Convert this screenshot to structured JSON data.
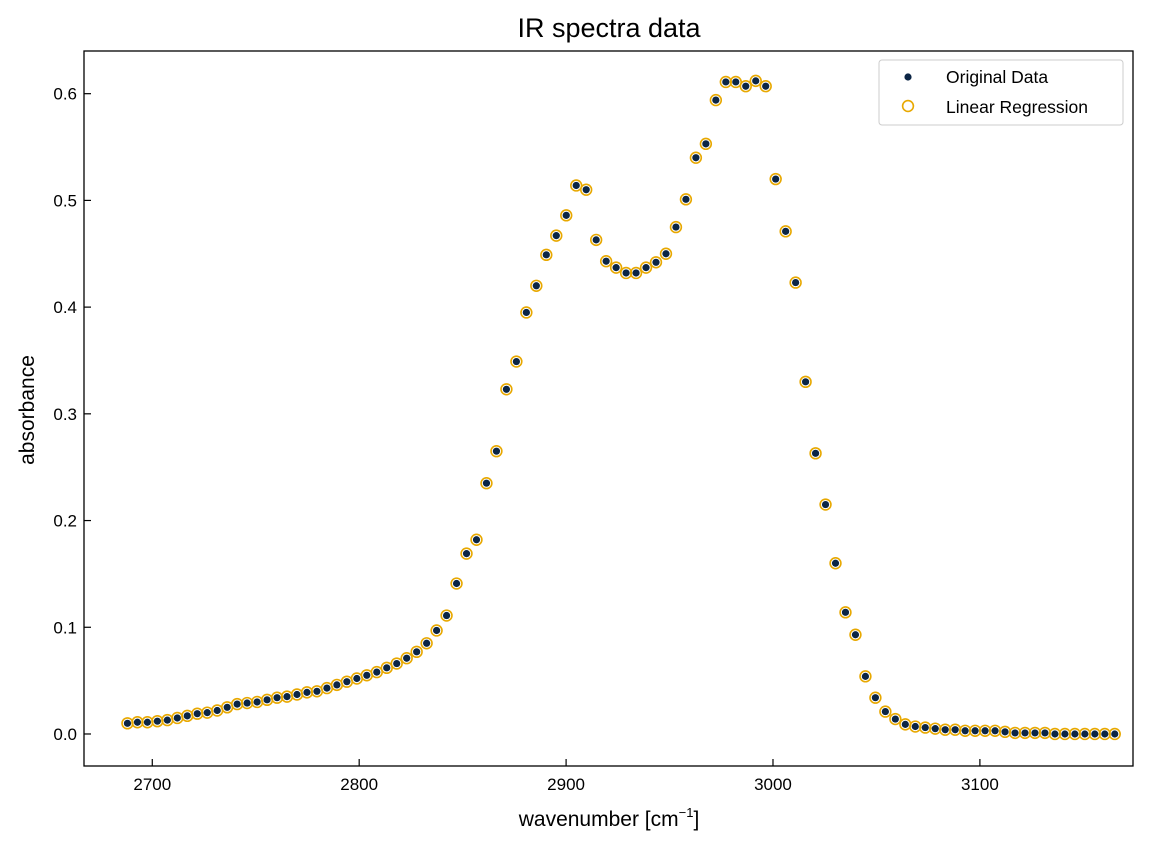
{
  "chart_data": {
    "type": "scatter",
    "title": "IR spectra data",
    "xlabel": "wavenumber [cm",
    "xlabel_sup": "−1",
    "xlabel_end": "]",
    "ylabel": "absorbance",
    "xlim": [
      2667,
      3174
    ],
    "ylim": [
      -0.03,
      0.64
    ],
    "xticks": [
      2700,
      2800,
      2900,
      3000,
      3100
    ],
    "yticks": [
      0.0,
      0.1,
      0.2,
      0.3,
      0.4,
      0.5,
      0.6
    ],
    "legend_position": "upper right",
    "colors": {
      "original": "#0b2545",
      "regression": "#e8a800"
    },
    "x_start": 2688,
    "x_step": 4.82,
    "series": [
      {
        "name": "Original Data",
        "marker": "filled-dot",
        "values": [
          0.01,
          0.011,
          0.011,
          0.012,
          0.013,
          0.015,
          0.017,
          0.019,
          0.02,
          0.022,
          0.025,
          0.028,
          0.029,
          0.03,
          0.032,
          0.034,
          0.035,
          0.037,
          0.039,
          0.04,
          0.043,
          0.046,
          0.049,
          0.052,
          0.055,
          0.058,
          0.062,
          0.066,
          0.071,
          0.077,
          0.085,
          0.097,
          0.111,
          0.141,
          0.169,
          0.182,
          0.235,
          0.265,
          0.323,
          0.349,
          0.395,
          0.42,
          0.449,
          0.467,
          0.486,
          0.514,
          0.51,
          0.463,
          0.443,
          0.437,
          0.432,
          0.432,
          0.437,
          0.442,
          0.45,
          0.475,
          0.501,
          0.54,
          0.553,
          0.594,
          0.611,
          0.611,
          0.607,
          0.612,
          0.607,
          0.52,
          0.471,
          0.423,
          0.33,
          0.263,
          0.215,
          0.16,
          0.114,
          0.093,
          0.054,
          0.034,
          0.021,
          0.014,
          0.009,
          0.007,
          0.006,
          0.005,
          0.004,
          0.004,
          0.003,
          0.003,
          0.003,
          0.003,
          0.002,
          0.001,
          0.001,
          0.001,
          0.001,
          0.0,
          0.0,
          0.0,
          0.0,
          0.0,
          0.0,
          0.0
        ]
      },
      {
        "name": "Linear Regression",
        "marker": "open-circle",
        "values": [
          0.01,
          0.011,
          0.011,
          0.012,
          0.013,
          0.015,
          0.017,
          0.019,
          0.02,
          0.022,
          0.025,
          0.028,
          0.029,
          0.03,
          0.032,
          0.034,
          0.035,
          0.037,
          0.039,
          0.04,
          0.043,
          0.046,
          0.049,
          0.052,
          0.055,
          0.058,
          0.062,
          0.066,
          0.071,
          0.077,
          0.085,
          0.097,
          0.111,
          0.141,
          0.169,
          0.182,
          0.235,
          0.265,
          0.323,
          0.349,
          0.395,
          0.42,
          0.449,
          0.467,
          0.486,
          0.514,
          0.51,
          0.463,
          0.443,
          0.437,
          0.432,
          0.432,
          0.437,
          0.442,
          0.45,
          0.475,
          0.501,
          0.54,
          0.553,
          0.594,
          0.611,
          0.611,
          0.607,
          0.612,
          0.607,
          0.52,
          0.471,
          0.423,
          0.33,
          0.263,
          0.215,
          0.16,
          0.114,
          0.093,
          0.054,
          0.034,
          0.021,
          0.014,
          0.009,
          0.007,
          0.006,
          0.005,
          0.004,
          0.004,
          0.003,
          0.003,
          0.003,
          0.003,
          0.002,
          0.001,
          0.001,
          0.001,
          0.001,
          0.0,
          0.0,
          0.0,
          0.0,
          0.0,
          0.0,
          0.0
        ]
      }
    ]
  }
}
